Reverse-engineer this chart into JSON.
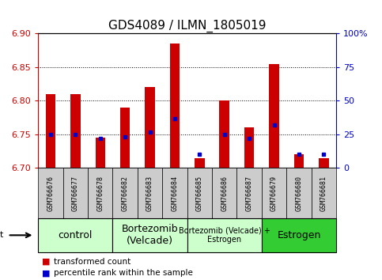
{
  "title": "GDS4089 / ILMN_1805019",
  "samples": [
    "GSM766676",
    "GSM766677",
    "GSM766678",
    "GSM766682",
    "GSM766683",
    "GSM766684",
    "GSM766685",
    "GSM766686",
    "GSM766687",
    "GSM766679",
    "GSM766680",
    "GSM766681"
  ],
  "transformed_count": [
    6.81,
    6.81,
    6.745,
    6.79,
    6.82,
    6.885,
    6.715,
    6.8,
    6.76,
    6.855,
    6.72,
    6.715
  ],
  "percentile_rank": [
    25,
    25,
    22,
    23,
    27,
    37,
    10,
    25,
    22,
    32,
    10,
    10
  ],
  "ylim_left": [
    6.7,
    6.9
  ],
  "ylim_right": [
    0,
    100
  ],
  "yticks_left": [
    6.7,
    6.75,
    6.8,
    6.85,
    6.9
  ],
  "yticks_right": [
    0,
    25,
    50,
    75,
    100
  ],
  "ytick_labels_right": [
    "0",
    "25",
    "50",
    "75",
    "100%"
  ],
  "bar_bottom": 6.7,
  "bar_color": "#cc0000",
  "dot_color": "#0000cc",
  "groups": [
    {
      "label": "control",
      "start": 0,
      "end": 3,
      "color": "#ccffcc",
      "fontsize": 9
    },
    {
      "label": "Bortezomib\n(Velcade)",
      "start": 3,
      "end": 6,
      "color": "#ccffcc",
      "fontsize": 9
    },
    {
      "label": "Bortezomib (Velcade) +\nEstrogen",
      "start": 6,
      "end": 9,
      "color": "#ccffcc",
      "fontsize": 7
    },
    {
      "label": "Estrogen",
      "start": 9,
      "end": 12,
      "color": "#33cc33",
      "fontsize": 9
    }
  ],
  "left_axis_color": "#cc0000",
  "right_axis_color": "#0000cc",
  "grid_color": "black",
  "title_fontsize": 11,
  "tick_fontsize": 8,
  "bar_width": 0.4,
  "xtick_fontsize": 6,
  "xlabel_bg": "#cccccc"
}
